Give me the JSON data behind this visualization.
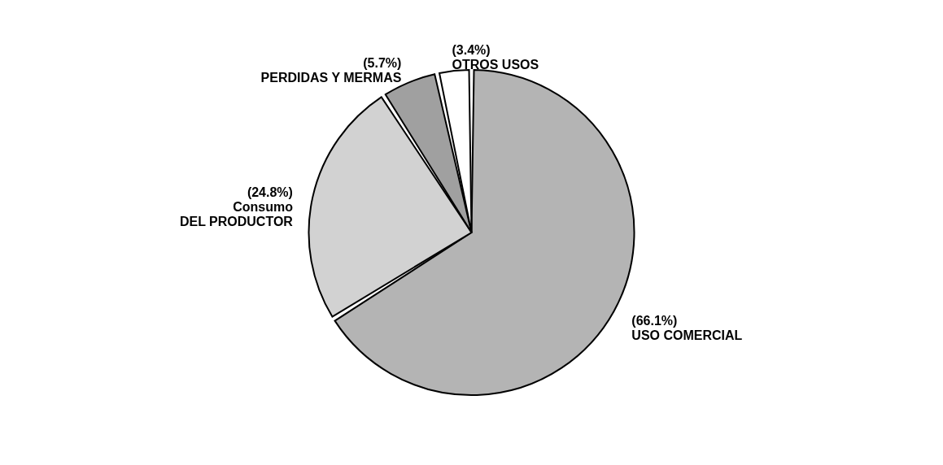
{
  "chart_data": {
    "type": "pie",
    "categories": [
      "USO COMERCIAL",
      "Consumo\nDEL PRODUCTOR",
      "PERDIDAS Y MERMAS",
      "OTROS USOS"
    ],
    "values": [
      66.1,
      24.8,
      5.7,
      3.4
    ],
    "value_labels": [
      "(66.1%)",
      "(24.8%)",
      "(5.7%)",
      "(3.4%)"
    ],
    "colors": [
      "#b4b4b4",
      "#d2d2d2",
      "#a0a0a0",
      "#ffffff"
    ],
    "legend": false
  }
}
